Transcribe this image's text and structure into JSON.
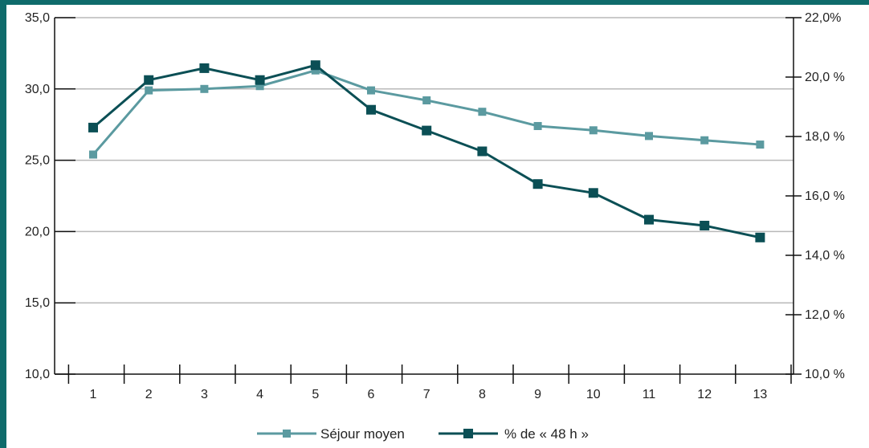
{
  "chart_data": {
    "type": "line",
    "categories": [
      "1",
      "2",
      "3",
      "4",
      "5",
      "6",
      "7",
      "8",
      "9",
      "10",
      "11",
      "12",
      "13"
    ],
    "y_left": {
      "range": [
        10,
        35
      ],
      "ticks": [
        10,
        15,
        20,
        25,
        30,
        35
      ],
      "tick_labels": [
        "10,0",
        "15,0",
        "20,0",
        "25,0",
        "30,0",
        "35,0"
      ]
    },
    "y_right": {
      "range": [
        10,
        22
      ],
      "ticks": [
        10,
        12,
        14,
        16,
        18,
        20,
        22
      ],
      "tick_labels": [
        "10,0 %",
        "12,0 %",
        "14,0 %",
        "16,0 %",
        "18,0 %",
        "20,0 %",
        "22,0%"
      ]
    },
    "grid": "horizontal",
    "legend_position": "bottom",
    "series": [
      {
        "name": "Séjour moyen",
        "axis": "left",
        "color": "#5b9aa0",
        "marker": "square",
        "values": [
          25.4,
          29.9,
          30.0,
          30.2,
          31.3,
          29.9,
          29.2,
          28.4,
          27.4,
          27.1,
          26.7,
          26.4,
          26.1
        ]
      },
      {
        "name": "% de « 48 h »",
        "axis": "right",
        "color": "#0b4f55",
        "marker": "square",
        "values": [
          18.3,
          19.9,
          20.3,
          19.9,
          20.4,
          18.9,
          18.2,
          17.5,
          16.4,
          16.1,
          15.2,
          15.0,
          14.6
        ]
      }
    ]
  }
}
